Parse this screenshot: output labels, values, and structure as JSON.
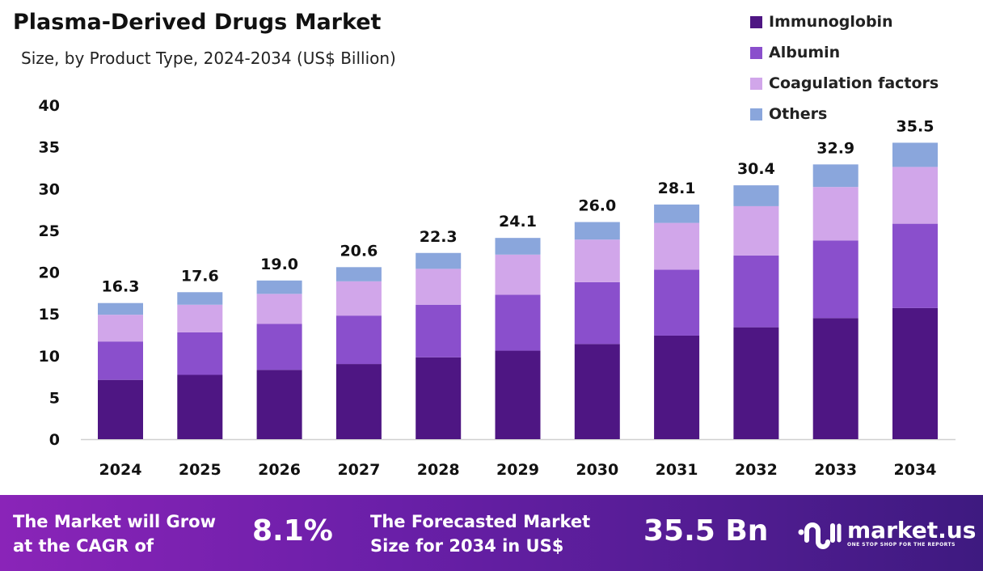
{
  "chart_data": {
    "type": "bar",
    "stacked": true,
    "title": "Plasma-Derived Drugs Market",
    "subtitle": "Size, by Product Type, 2024-2034 (US$ Billion)",
    "categories": [
      "2024",
      "2025",
      "2026",
      "2027",
      "2028",
      "2029",
      "2030",
      "2031",
      "2032",
      "2033",
      "2034"
    ],
    "series": [
      {
        "name": "Immunoglobin",
        "color": "#4e1683",
        "values": [
          7.1,
          7.7,
          8.3,
          9.0,
          9.8,
          10.6,
          11.4,
          12.4,
          13.4,
          14.5,
          15.7
        ]
      },
      {
        "name": "Albumin",
        "color": "#8a4fcc",
        "values": [
          4.6,
          5.1,
          5.5,
          5.8,
          6.3,
          6.7,
          7.4,
          7.9,
          8.6,
          9.3,
          10.1
        ]
      },
      {
        "name": "Coagulation factors",
        "color": "#d1a6ea",
        "values": [
          3.2,
          3.3,
          3.6,
          4.1,
          4.3,
          4.8,
          5.1,
          5.6,
          5.9,
          6.4,
          6.8
        ]
      },
      {
        "name": "Others",
        "color": "#8aa6dc",
        "values": [
          1.4,
          1.5,
          1.6,
          1.7,
          1.9,
          2.0,
          2.1,
          2.2,
          2.5,
          2.7,
          2.9
        ]
      }
    ],
    "totals": [
      "16.3",
      "17.6",
      "19.0",
      "20.6",
      "22.3",
      "24.1",
      "26.0",
      "28.1",
      "30.4",
      "32.9",
      "35.5"
    ],
    "yticks": [
      "0",
      "5",
      "10",
      "15",
      "20",
      "25",
      "30",
      "35",
      "40"
    ],
    "ylim": [
      0,
      40
    ],
    "grid": false,
    "legend": "top-right"
  },
  "footer": {
    "cagr_text_1": "The Market will Grow",
    "cagr_text_2": "at the CAGR of",
    "cagr_value": "8.1%",
    "forecast_text_1": "The Forecasted Market",
    "forecast_text_2": "Size for 2034 in US$",
    "forecast_value": "35.5 Bn",
    "logo_name": "market.us",
    "logo_tagline": "ONE STOP SHOP FOR THE REPORTS"
  }
}
